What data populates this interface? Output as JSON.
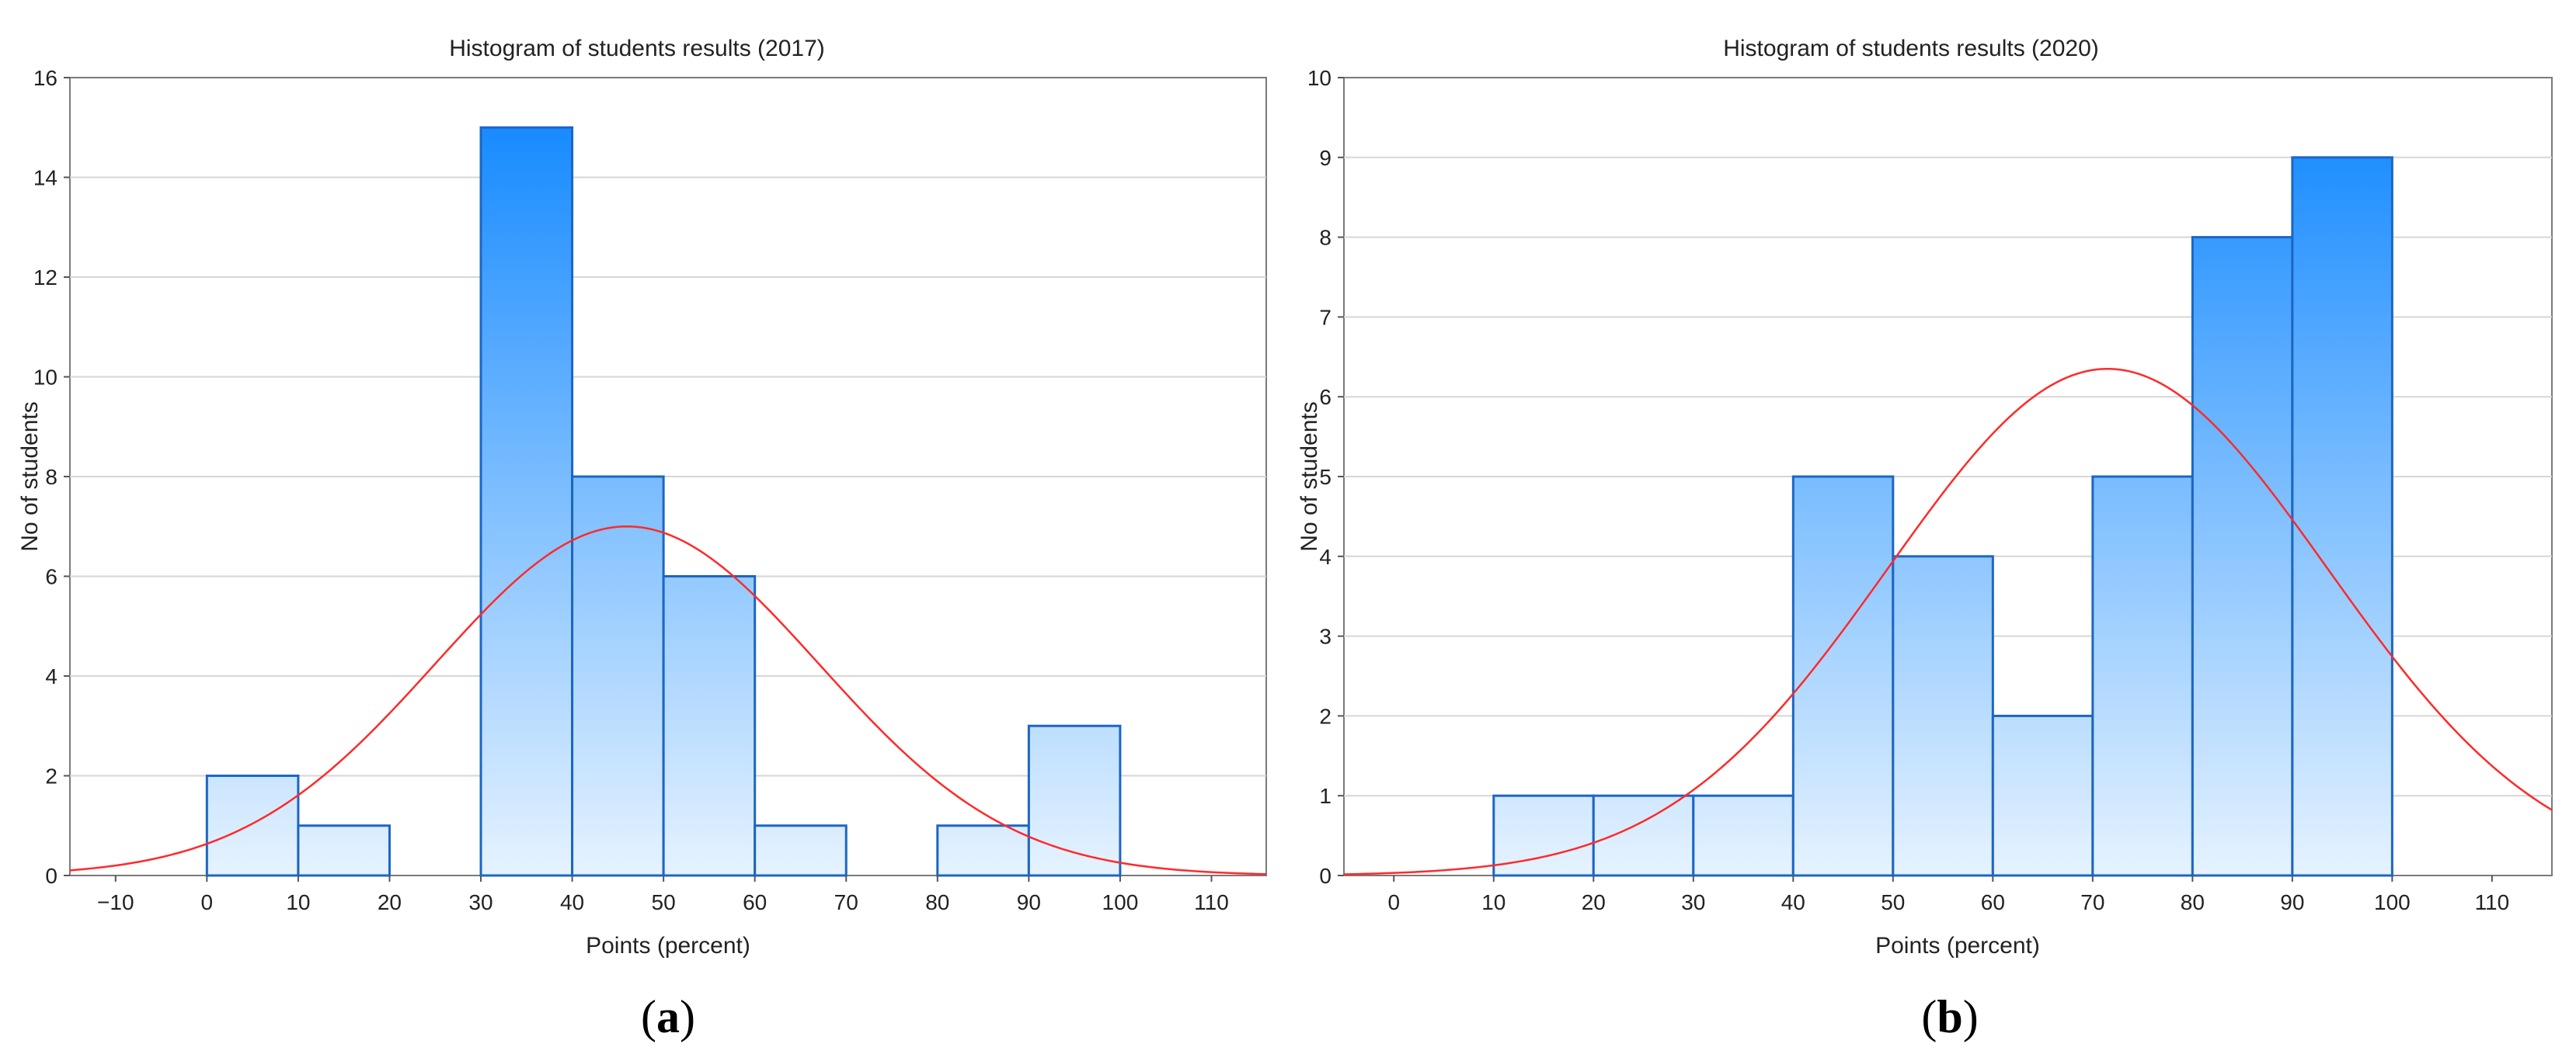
{
  "chart_data": [
    {
      "type": "bar",
      "subtype": "histogram",
      "panel": "a",
      "title": "Histogram of students results (2017)",
      "xlabel": "Points (percent)",
      "ylabel": "No of students",
      "xlim": [
        -15,
        116
      ],
      "ylim": [
        0,
        16
      ],
      "xticks": [
        "−10",
        "0",
        "10",
        "20",
        "30",
        "40",
        "50",
        "60",
        "70",
        "80",
        "90",
        "100",
        "110"
      ],
      "yticks": [
        "0",
        "2",
        "4",
        "6",
        "8",
        "10",
        "12",
        "14",
        "16"
      ],
      "grid": true,
      "bins": [
        {
          "from": 0,
          "to": 10,
          "count": 2
        },
        {
          "from": 10,
          "to": 20,
          "count": 1
        },
        {
          "from": 20,
          "to": 30,
          "count": 0
        },
        {
          "from": 30,
          "to": 40,
          "count": 15
        },
        {
          "from": 40,
          "to": 50,
          "count": 8
        },
        {
          "from": 50,
          "to": 60,
          "count": 6
        },
        {
          "from": 60,
          "to": 70,
          "count": 1
        },
        {
          "from": 70,
          "to": 80,
          "count": 0
        },
        {
          "from": 80,
          "to": 90,
          "count": 1
        },
        {
          "from": 90,
          "to": 100,
          "count": 3
        }
      ],
      "normal_curve": {
        "mean": 46,
        "peak": 7.0,
        "sd": 21,
        "color": "#ff2a2a"
      },
      "bar_color_top": "#0a84ff",
      "bar_color_bottom": "#e6f3ff",
      "edge_color": "#1c66c4"
    },
    {
      "type": "bar",
      "subtype": "histogram",
      "panel": "b",
      "title": "Histogram of students results (2020)",
      "xlabel": "Points (percent)",
      "ylabel": "No of students",
      "xlim": [
        -5,
        116
      ],
      "ylim": [
        0,
        10
      ],
      "xticks": [
        "0",
        "10",
        "20",
        "30",
        "40",
        "50",
        "60",
        "70",
        "80",
        "90",
        "100",
        "110"
      ],
      "yticks": [
        "0",
        "1",
        "2",
        "3",
        "4",
        "5",
        "6",
        "7",
        "8",
        "9",
        "10"
      ],
      "grid": true,
      "bins": [
        {
          "from": 10,
          "to": 20,
          "count": 1
        },
        {
          "from": 20,
          "to": 30,
          "count": 1
        },
        {
          "from": 30,
          "to": 40,
          "count": 1
        },
        {
          "from": 40,
          "to": 50,
          "count": 5
        },
        {
          "from": 50,
          "to": 60,
          "count": 4
        },
        {
          "from": 60,
          "to": 70,
          "count": 2
        },
        {
          "from": 70,
          "to": 80,
          "count": 5
        },
        {
          "from": 80,
          "to": 90,
          "count": 8
        },
        {
          "from": 90,
          "to": 100,
          "count": 9
        }
      ],
      "normal_curve": {
        "mean": 71.5,
        "peak": 6.35,
        "sd": 22,
        "color": "#ff2a2a"
      },
      "bar_color_top": "#0a84ff",
      "bar_color_bottom": "#e6f3ff",
      "edge_color": "#1c66c4"
    }
  ],
  "panel_labels": [
    {
      "open": "(",
      "letter": "a",
      "close": ")"
    },
    {
      "open": "(",
      "letter": "b",
      "close": ")"
    }
  ]
}
